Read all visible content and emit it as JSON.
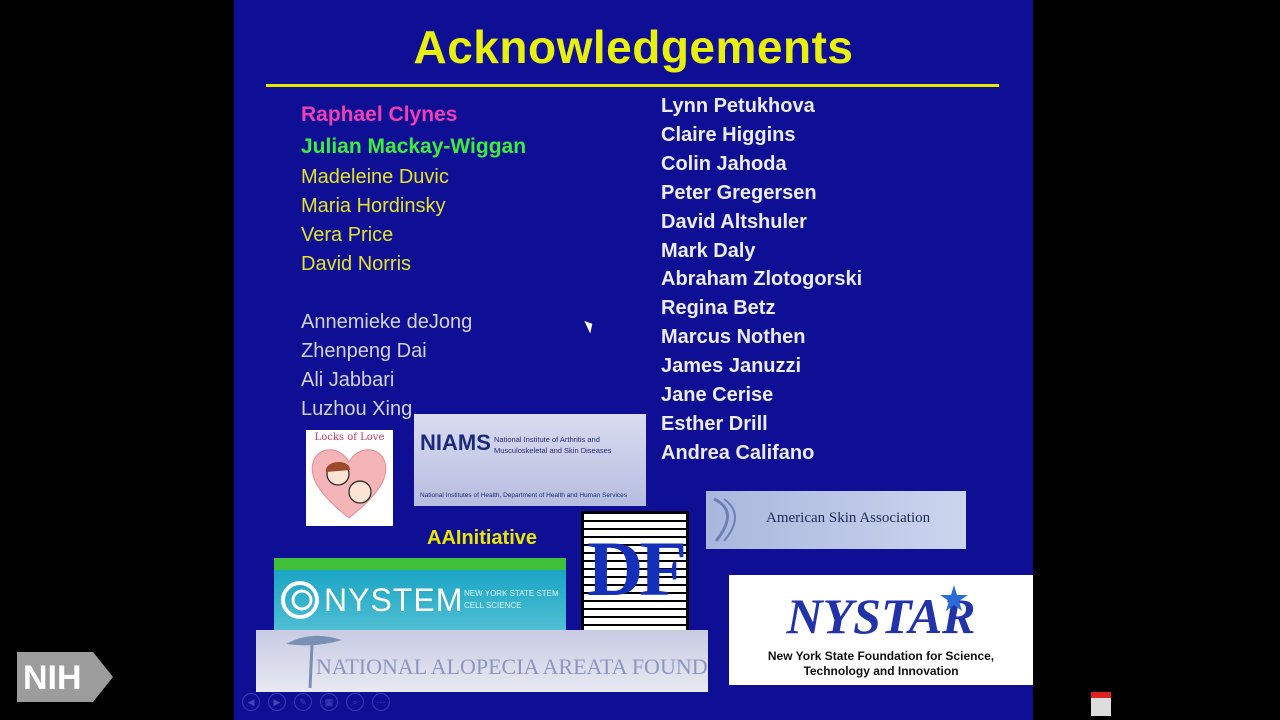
{
  "slide": {
    "title": "Acknowledgements",
    "col1_highlight": [
      {
        "name": "Raphael Clynes",
        "color": "#ef3fb2"
      },
      {
        "name": "Julian Mackay-Wiggan",
        "color": "#39ef3a"
      }
    ],
    "col1_yellow": [
      "Madeleine Duvic",
      "Maria Hordinsky",
      "Vera Price",
      "David Norris"
    ],
    "col1_grey": [
      "Annemieke deJong",
      "Zhenpeng Dai",
      "Ali Jabbari",
      "Luzhou Xing"
    ],
    "col2": [
      "Lynn Petukhova",
      "Claire Higgins",
      "Colin Jahoda",
      "Peter Gregersen",
      "David Altshuler",
      "Mark Daly",
      "Abraham Zlotogorski",
      "Regina Betz",
      "Marcus Nothen",
      "James Januzzi",
      "Jane Cerise",
      "Esther Drill",
      "Andrea Califano"
    ],
    "logos": {
      "locks_text": "Locks of Love",
      "niams_abbr": "NIAMS",
      "niams_full": "National Institute of Arthritis and Musculoskeletal and Skin Diseases",
      "niams_sub": "National Institutes of Health, Department of Health and Human Services",
      "aa_initiative": "AAInitiative",
      "nystem": "NYSTEM",
      "nystem_sub": "NEW YORK STATE STEM CELL SCIENCE",
      "df": "DF",
      "asa": "American Skin Association",
      "nystar": "NYSTAR",
      "nystar_sub": "New York State Foundation for Science, Technology and Innovation",
      "naaf": "NATIONAL ALOPECIA AREATA FOUNDATION"
    }
  },
  "overlay": {
    "nih_logo": "NIH",
    "controls": [
      "prev-icon",
      "next-icon",
      "pen-icon",
      "slides-icon",
      "zoom-icon",
      "more-icon"
    ]
  }
}
